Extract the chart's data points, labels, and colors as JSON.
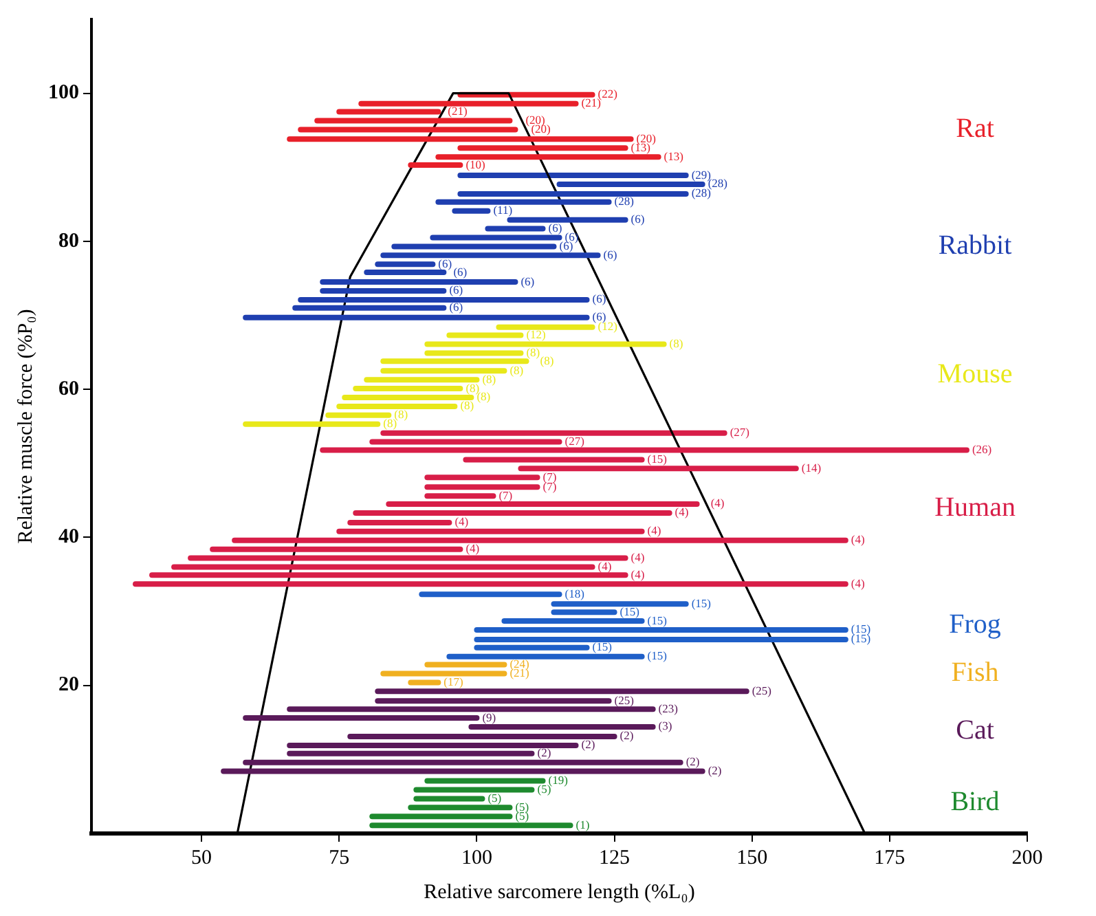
{
  "chart_data": {
    "type": "line",
    "xlabel": "Relative sarcomere length (%L₀)",
    "ylabel": "Relative muscle force (%P₀)",
    "xlim": [
      30,
      200
    ],
    "ylim": [
      0,
      110
    ],
    "xticks": [
      50,
      75,
      100,
      125,
      150,
      175,
      200
    ],
    "yticks": [
      20,
      40,
      60,
      80,
      100
    ],
    "grid": false,
    "legend": false,
    "marker": "none",
    "series": [
      {
        "name": "Rat",
        "color": "#e8202a",
        "x": [
          97,
          121
        ],
        "values": [
          99.8,
          99.8
        ]
      },
      {
        "color": "#e8202a",
        "x": [
          79,
          118
        ],
        "values": [
          98.6,
          98.6
        ]
      },
      {
        "color": "#e8202a",
        "x": [
          75,
          93
        ],
        "values": [
          97.5,
          97.5
        ]
      },
      {
        "color": "#e8202a",
        "x": [
          71,
          106
        ],
        "values": [
          96.3,
          96.3
        ]
      },
      {
        "color": "#e8202a",
        "x": [
          68,
          107
        ],
        "values": [
          95.1,
          95.1
        ]
      },
      {
        "color": "#e8202a",
        "x": [
          66,
          128
        ],
        "values": [
          93.8,
          93.8
        ]
      },
      {
        "color": "#e8202a",
        "x": [
          97,
          127
        ],
        "values": [
          92.6,
          92.6
        ]
      },
      {
        "color": "#e8202a",
        "x": [
          93,
          133
        ],
        "values": [
          91.4,
          91.4
        ]
      },
      {
        "color": "#e8202a",
        "x": [
          88,
          97
        ],
        "values": [
          90.3,
          90.3
        ]
      },
      {
        "name": "Rabbit",
        "color": "#1f3fb0",
        "x": [
          97,
          138
        ],
        "values": [
          88.9,
          88.9
        ]
      },
      {
        "color": "#1f3fb0",
        "x": [
          115,
          141
        ],
        "values": [
          87.7,
          87.7
        ]
      },
      {
        "color": "#1f3fb0",
        "x": [
          97,
          138
        ],
        "values": [
          86.4,
          86.4
        ]
      },
      {
        "color": "#1f3fb0",
        "x": [
          93,
          124
        ],
        "values": [
          85.3,
          85.3
        ]
      },
      {
        "color": "#1f3fb0",
        "x": [
          96,
          102
        ],
        "values": [
          84.1,
          84.1
        ]
      },
      {
        "color": "#1f3fb0",
        "x": [
          106,
          127
        ],
        "values": [
          82.9,
          82.9
        ]
      },
      {
        "color": "#1f3fb0",
        "x": [
          102,
          112
        ],
        "values": [
          81.7,
          81.7
        ]
      },
      {
        "color": "#1f3fb0",
        "x": [
          92,
          115
        ],
        "values": [
          80.5,
          80.5
        ]
      },
      {
        "color": "#1f3fb0",
        "x": [
          85,
          114
        ],
        "values": [
          79.3,
          79.3
        ]
      },
      {
        "color": "#1f3fb0",
        "x": [
          83,
          122
        ],
        "values": [
          78.1,
          78.1
        ]
      },
      {
        "color": "#1f3fb0",
        "x": [
          82,
          92
        ],
        "values": [
          76.9,
          76.9
        ]
      },
      {
        "color": "#1f3fb0",
        "x": [
          80,
          94
        ],
        "values": [
          75.8,
          75.8
        ]
      },
      {
        "color": "#1f3fb0",
        "x": [
          72,
          107
        ],
        "values": [
          74.5,
          74.5
        ]
      },
      {
        "color": "#1f3fb0",
        "x": [
          72,
          94
        ],
        "values": [
          73.3,
          73.3
        ]
      },
      {
        "color": "#1f3fb0",
        "x": [
          68,
          120
        ],
        "values": [
          72.1,
          72.1
        ]
      },
      {
        "color": "#1f3fb0",
        "x": [
          67,
          94
        ],
        "values": [
          71.0,
          71.0
        ]
      },
      {
        "color": "#1f3fb0",
        "x": [
          58,
          120
        ],
        "values": [
          69.7,
          69.7
        ]
      },
      {
        "name": "Mouse",
        "color": "#e8e81a",
        "x": [
          104,
          121
        ],
        "values": [
          68.4,
          68.4
        ]
      },
      {
        "color": "#e8e81a",
        "x": [
          95,
          108
        ],
        "values": [
          67.3,
          67.3
        ]
      },
      {
        "color": "#e8e81a",
        "x": [
          91,
          134
        ],
        "values": [
          66.1,
          66.1
        ]
      },
      {
        "color": "#e8e81a",
        "x": [
          91,
          108
        ],
        "values": [
          64.9,
          64.9
        ]
      },
      {
        "color": "#e8e81a",
        "x": [
          83,
          109
        ],
        "values": [
          63.8,
          63.8
        ]
      },
      {
        "color": "#e8e81a",
        "x": [
          83,
          105
        ],
        "values": [
          62.5,
          62.5
        ]
      },
      {
        "color": "#e8e81a",
        "x": [
          80,
          100
        ],
        "values": [
          61.3,
          61.3
        ]
      },
      {
        "color": "#e8e81a",
        "x": [
          78,
          97
        ],
        "values": [
          60.1,
          60.1
        ]
      },
      {
        "color": "#e8e81a",
        "x": [
          76,
          99
        ],
        "values": [
          58.9,
          58.9
        ]
      },
      {
        "color": "#e8e81a",
        "x": [
          75,
          96
        ],
        "values": [
          57.7,
          57.7
        ]
      },
      {
        "color": "#e8e81a",
        "x": [
          73,
          84
        ],
        "values": [
          56.5,
          56.5
        ]
      },
      {
        "color": "#e8e81a",
        "x": [
          58,
          82
        ],
        "values": [
          55.3,
          55.3
        ]
      },
      {
        "name": "Human",
        "color": "#d81e48",
        "x": [
          83,
          145
        ],
        "values": [
          54.1,
          54.1
        ]
      },
      {
        "color": "#d81e48",
        "x": [
          81,
          115
        ],
        "values": [
          52.9,
          52.9
        ]
      },
      {
        "color": "#d81e48",
        "x": [
          72,
          189
        ],
        "values": [
          51.8,
          51.8
        ]
      },
      {
        "color": "#d81e48",
        "x": [
          98,
          130
        ],
        "values": [
          50.5,
          50.5
        ]
      },
      {
        "color": "#d81e48",
        "x": [
          108,
          158
        ],
        "values": [
          49.3,
          49.3
        ]
      },
      {
        "color": "#d81e48",
        "x": [
          91,
          111
        ],
        "values": [
          48.1,
          48.1
        ]
      },
      {
        "color": "#d81e48",
        "x": [
          91,
          111
        ],
        "values": [
          46.8,
          46.8
        ]
      },
      {
        "color": "#d81e48",
        "x": [
          91,
          103
        ],
        "values": [
          45.6,
          45.6
        ]
      },
      {
        "color": "#d81e48",
        "x": [
          84,
          140
        ],
        "values": [
          44.5,
          44.5
        ]
      },
      {
        "color": "#d81e48",
        "x": [
          78,
          135
        ],
        "values": [
          43.3,
          43.3
        ]
      },
      {
        "color": "#d81e48",
        "x": [
          77,
          95
        ],
        "values": [
          42.0,
          42.0
        ]
      },
      {
        "color": "#d81e48",
        "x": [
          75,
          130
        ],
        "values": [
          40.8,
          40.8
        ]
      },
      {
        "color": "#d81e48",
        "x": [
          56,
          167
        ],
        "values": [
          39.6,
          39.6
        ]
      },
      {
        "color": "#d81e48",
        "x": [
          52,
          97
        ],
        "values": [
          38.4,
          38.4
        ]
      },
      {
        "color": "#d81e48",
        "x": [
          48,
          127
        ],
        "values": [
          37.2,
          37.2
        ]
      },
      {
        "color": "#d81e48",
        "x": [
          45,
          121
        ],
        "values": [
          36.0,
          36.0
        ]
      },
      {
        "color": "#d81e48",
        "x": [
          41,
          127
        ],
        "values": [
          34.9,
          34.9
        ]
      },
      {
        "color": "#d81e48",
        "x": [
          38,
          167
        ],
        "values": [
          33.7,
          33.7
        ]
      },
      {
        "name": "Frog",
        "color": "#1f5fc8",
        "x": [
          90,
          115
        ],
        "values": [
          32.3,
          32.3
        ]
      },
      {
        "color": "#1f5fc8",
        "x": [
          114,
          138
        ],
        "values": [
          31.0,
          31.0
        ]
      },
      {
        "color": "#1f5fc8",
        "x": [
          114,
          125
        ],
        "values": [
          29.9,
          29.9
        ]
      },
      {
        "color": "#1f5fc8",
        "x": [
          105,
          130
        ],
        "values": [
          28.7,
          28.7
        ]
      },
      {
        "color": "#1f5fc8",
        "x": [
          100,
          167
        ],
        "values": [
          27.5,
          27.5
        ]
      },
      {
        "color": "#1f5fc8",
        "x": [
          100,
          167
        ],
        "values": [
          26.2,
          26.2
        ]
      },
      {
        "color": "#1f5fc8",
        "x": [
          100,
          120
        ],
        "values": [
          25.1,
          25.1
        ]
      },
      {
        "color": "#1f5fc8",
        "x": [
          95,
          130
        ],
        "values": [
          23.9,
          23.9
        ]
      },
      {
        "name": "Fish",
        "color": "#f0b020",
        "x": [
          91,
          105
        ],
        "values": [
          22.8,
          22.8
        ]
      },
      {
        "color": "#f0b020",
        "x": [
          83,
          105
        ],
        "values": [
          21.6,
          21.6
        ]
      },
      {
        "color": "#f0b020",
        "x": [
          88,
          93
        ],
        "values": [
          20.4,
          20.4
        ]
      },
      {
        "name": "Cat",
        "color": "#5a1a5a",
        "x": [
          82,
          149
        ],
        "values": [
          19.2,
          19.2
        ]
      },
      {
        "color": "#5a1a5a",
        "x": [
          82,
          124
        ],
        "values": [
          17.9,
          17.9
        ]
      },
      {
        "color": "#5a1a5a",
        "x": [
          66,
          132
        ],
        "values": [
          16.8,
          16.8
        ]
      },
      {
        "color": "#5a1a5a",
        "x": [
          58,
          100
        ],
        "values": [
          15.6,
          15.6
        ]
      },
      {
        "color": "#5a1a5a",
        "x": [
          99,
          132
        ],
        "values": [
          14.4,
          14.4
        ]
      },
      {
        "color": "#5a1a5a",
        "x": [
          77,
          125
        ],
        "values": [
          13.1,
          13.1
        ]
      },
      {
        "color": "#5a1a5a",
        "x": [
          66,
          118
        ],
        "values": [
          11.9,
          11.9
        ]
      },
      {
        "color": "#5a1a5a",
        "x": [
          66,
          110
        ],
        "values": [
          10.8,
          10.8
        ]
      },
      {
        "color": "#5a1a5a",
        "x": [
          58,
          137
        ],
        "values": [
          9.6,
          9.6
        ]
      },
      {
        "color": "#5a1a5a",
        "x": [
          54,
          141
        ],
        "values": [
          8.4,
          8.4
        ]
      },
      {
        "name": "Bird",
        "color": "#1e8a2e",
        "x": [
          91,
          112
        ],
        "values": [
          7.1,
          7.1
        ]
      },
      {
        "color": "#1e8a2e",
        "x": [
          89,
          110
        ],
        "values": [
          5.9,
          5.9
        ]
      },
      {
        "color": "#1e8a2e",
        "x": [
          89,
          101
        ],
        "values": [
          4.7,
          4.7
        ]
      },
      {
        "color": "#1e8a2e",
        "x": [
          88,
          106
        ],
        "values": [
          3.5,
          3.5
        ]
      },
      {
        "color": "#1e8a2e",
        "x": [
          81,
          106
        ],
        "values": [
          2.3,
          2.3
        ]
      },
      {
        "color": "#1e8a2e",
        "x": [
          81,
          117
        ],
        "values": [
          1.1,
          1.1
        ]
      },
      {
        "color": "#000000",
        "x": [
          56.5,
          77,
          95.7,
          105.8,
          170.5
        ],
        "values": [
          0,
          75.2,
          100,
          100,
          0
        ]
      }
    ],
    "annotations": [
      {
        "text": "(22)",
        "x": 121,
        "y": 99.8
      },
      {
        "text": "(21)",
        "x": 118,
        "y": 98.6
      },
      {
        "text": "(21)",
        "x": 93,
        "y": 97.5
      },
      {
        "text": "(20)",
        "x": 106,
        "y": 96.3
      },
      {
        "text": "(20)",
        "x": 107,
        "y": 95.1
      },
      {
        "text": "(20)",
        "x": 128,
        "y": 93.8
      },
      {
        "text": "(13)",
        "x": 127,
        "y": 92.6
      },
      {
        "text": "(13)",
        "x": 133,
        "y": 91.4
      },
      {
        "text": "(10)",
        "x": 97,
        "y": 90.3
      },
      {
        "text": "(29)",
        "x": 138,
        "y": 88.9
      },
      {
        "text": "(28)",
        "x": 141,
        "y": 87.7
      },
      {
        "text": "(28)",
        "x": 138,
        "y": 86.4
      },
      {
        "text": "(28)",
        "x": 124,
        "y": 85.3
      },
      {
        "text": "(11)",
        "x": 102,
        "y": 84.1
      },
      {
        "text": "(6)",
        "x": 127,
        "y": 82.9
      },
      {
        "text": "(6)",
        "x": 112,
        "y": 81.7
      },
      {
        "text": "(6)",
        "x": 115,
        "y": 80.5
      },
      {
        "text": "(6)",
        "x": 114,
        "y": 79.3
      },
      {
        "text": "(6)",
        "x": 122,
        "y": 78.1
      },
      {
        "text": "(6)",
        "x": 92,
        "y": 76.9
      },
      {
        "text": "(6)",
        "x": 94,
        "y": 75.8
      },
      {
        "text": "(6)",
        "x": 107,
        "y": 74.5
      },
      {
        "text": "(6)",
        "x": 94,
        "y": 73.3
      },
      {
        "text": "(6)",
        "x": 120,
        "y": 72.1
      },
      {
        "text": "(6)",
        "x": 94,
        "y": 71.0
      },
      {
        "text": "(6)",
        "x": 120,
        "y": 69.7
      },
      {
        "text": "(12)",
        "x": 121,
        "y": 68.4
      },
      {
        "text": "(12)",
        "x": 108,
        "y": 67.3
      },
      {
        "text": "(8)",
        "x": 134,
        "y": 66.1
      },
      {
        "text": "(8)",
        "x": 108,
        "y": 64.9
      },
      {
        "text": "(8)",
        "x": 109,
        "y": 63.8
      },
      {
        "text": "(8)",
        "x": 105,
        "y": 62.5
      },
      {
        "text": "(8)",
        "x": 100,
        "y": 61.3
      },
      {
        "text": "(8)",
        "x": 97,
        "y": 60.1
      },
      {
        "text": "(8)",
        "x": 99,
        "y": 58.9
      },
      {
        "text": "(8)",
        "x": 96,
        "y": 57.7
      },
      {
        "text": "(8)",
        "x": 84,
        "y": 56.5
      },
      {
        "text": "(8)",
        "x": 82,
        "y": 55.3
      },
      {
        "text": "(27)",
        "x": 145,
        "y": 54.1
      },
      {
        "text": "(27)",
        "x": 115,
        "y": 52.9
      },
      {
        "text": "(26)",
        "x": 189,
        "y": 51.8
      },
      {
        "text": "(15)",
        "x": 130,
        "y": 50.5
      },
      {
        "text": "(14)",
        "x": 158,
        "y": 49.3
      },
      {
        "text": "(7)",
        "x": 111,
        "y": 48.1
      },
      {
        "text": "(7)",
        "x": 111,
        "y": 46.8
      },
      {
        "text": "(7)",
        "x": 103,
        "y": 45.6
      },
      {
        "text": "(4)",
        "x": 140,
        "y": 44.5
      },
      {
        "text": "(4)",
        "x": 135,
        "y": 43.3
      },
      {
        "text": "(4)",
        "x": 95,
        "y": 42.0
      },
      {
        "text": "(4)",
        "x": 130,
        "y": 40.8
      },
      {
        "text": "(4)",
        "x": 167,
        "y": 39.6
      },
      {
        "text": "(4)",
        "x": 97,
        "y": 38.4
      },
      {
        "text": "(4)",
        "x": 127,
        "y": 37.2
      },
      {
        "text": "(4)",
        "x": 121,
        "y": 36.0
      },
      {
        "text": "(4)",
        "x": 127,
        "y": 34.9
      },
      {
        "text": "(4)",
        "x": 167,
        "y": 33.7
      },
      {
        "text": "(18)",
        "x": 115,
        "y": 32.3
      },
      {
        "text": "(15)",
        "x": 138,
        "y": 31.0
      },
      {
        "text": "(15)",
        "x": 125,
        "y": 29.9
      },
      {
        "text": "(15)",
        "x": 130,
        "y": 28.7
      },
      {
        "text": "(15)",
        "x": 167,
        "y": 27.5
      },
      {
        "text": "(15)",
        "x": 167,
        "y": 26.2
      },
      {
        "text": "(15)",
        "x": 120,
        "y": 25.1
      },
      {
        "text": "(15)",
        "x": 130,
        "y": 23.9
      },
      {
        "text": "(24)",
        "x": 105,
        "y": 22.8
      },
      {
        "text": "(21)",
        "x": 105,
        "y": 21.6
      },
      {
        "text": "(17)",
        "x": 93,
        "y": 20.4
      },
      {
        "text": "(25)",
        "x": 149,
        "y": 19.2
      },
      {
        "text": "(25)",
        "x": 124,
        "y": 17.9
      },
      {
        "text": "(23)",
        "x": 132,
        "y": 16.8
      },
      {
        "text": "(9)",
        "x": 100,
        "y": 15.6
      },
      {
        "text": "(3)",
        "x": 132,
        "y": 14.4
      },
      {
        "text": "(2)",
        "x": 125,
        "y": 13.1
      },
      {
        "text": "(2)",
        "x": 118,
        "y": 11.9
      },
      {
        "text": "(2)",
        "x": 110,
        "y": 10.8
      },
      {
        "text": "(2)",
        "x": 137,
        "y": 9.6
      },
      {
        "text": "(2)",
        "x": 141,
        "y": 8.4
      },
      {
        "text": "(19)",
        "x": 112,
        "y": 7.1
      },
      {
        "text": "(5)",
        "x": 110,
        "y": 5.9
      },
      {
        "text": "(5)",
        "x": 101,
        "y": 4.7
      },
      {
        "text": "(5)",
        "x": 106,
        "y": 3.5
      },
      {
        "text": "(5)",
        "x": 106,
        "y": 2.3
      },
      {
        "text": "(1)",
        "x": 117,
        "y": 1.1
      }
    ]
  }
}
